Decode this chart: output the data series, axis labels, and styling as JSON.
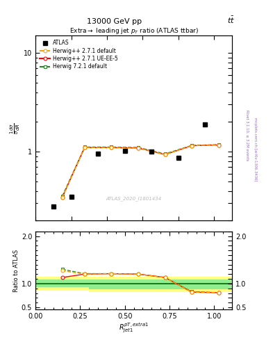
{
  "title_top": "13000 GeV pp",
  "title_right": "t$\\bar{t}$",
  "plot_title": "Extra$\\rightarrow$ leading jet $p_T$ ratio (ATLAS ttbar)",
  "watermark": "ATLAS_2020_I1801434",
  "rivet_text": "Rivet 3.1.10, ≥ 3.2M events",
  "mcplots_text": "mcplots.cern.ch [arXiv:1306.3436]",
  "xlabel": "$R_{jet1}^{pT,extra1}$",
  "ylabel_main": "$\\frac{1}{\\sigma}\\frac{d\\sigma}{dR}$",
  "ylabel_ratio": "Ratio to ATLAS",
  "atlas_x": [
    0.1,
    0.2,
    0.35,
    0.5,
    0.65,
    0.8,
    0.95
  ],
  "atlas_vals": [
    0.28,
    0.35,
    0.95,
    1.02,
    1.0,
    0.86,
    1.9
  ],
  "main_x": [
    0.15,
    0.275,
    0.425,
    0.575,
    0.725,
    0.875,
    1.025
  ],
  "main_hw271def": [
    0.345,
    1.1,
    1.1,
    1.09,
    0.935,
    1.15,
    1.17
  ],
  "main_hw271uee5": [
    0.345,
    1.1,
    1.1,
    1.09,
    0.935,
    1.15,
    1.17
  ],
  "main_hw721def": [
    0.355,
    1.115,
    1.115,
    1.105,
    0.95,
    1.16,
    1.18
  ],
  "ratio_x": [
    0.15,
    0.275,
    0.425,
    0.575,
    0.725,
    0.875,
    1.025
  ],
  "ratio_hw271def": [
    1.27,
    1.2,
    1.21,
    1.2,
    1.13,
    0.82,
    0.81
  ],
  "ratio_hw271uee5": [
    1.13,
    1.2,
    1.21,
    1.2,
    1.13,
    0.82,
    0.81
  ],
  "ratio_hw721def": [
    1.3,
    1.21,
    1.21,
    1.2,
    1.13,
    0.83,
    0.81
  ],
  "band_x": [
    0.0,
    0.15,
    0.3,
    0.45,
    0.6,
    0.75,
    0.9,
    1.1
  ],
  "band_green_lo": [
    0.93,
    0.93,
    0.88,
    0.88,
    0.88,
    0.88,
    0.88,
    0.88
  ],
  "band_green_hi": [
    1.08,
    1.08,
    1.08,
    1.08,
    1.08,
    1.08,
    1.08,
    1.08
  ],
  "band_yellow_lo": [
    0.85,
    0.85,
    0.82,
    0.82,
    0.82,
    0.82,
    0.82,
    0.82
  ],
  "band_yellow_hi": [
    1.15,
    1.15,
    1.15,
    1.15,
    1.15,
    1.15,
    1.15,
    1.15
  ],
  "xlim": [
    0,
    1.1
  ],
  "ylim_main": [
    0.2,
    15
  ],
  "ylim_ratio": [
    0.45,
    2.1
  ],
  "yticks_ratio": [
    0.5,
    1.0,
    2.0
  ],
  "color_atlas": "#000000",
  "color_hw271def": "#FFA500",
  "color_hw271uee5": "#FF0000",
  "color_hw721def": "#228B22",
  "color_band_green": "#90EE90",
  "color_band_yellow": "#FFFF80",
  "color_ref_line": "#006400",
  "color_watermark": "#BBBBBB",
  "color_side_text": "#9966CC"
}
